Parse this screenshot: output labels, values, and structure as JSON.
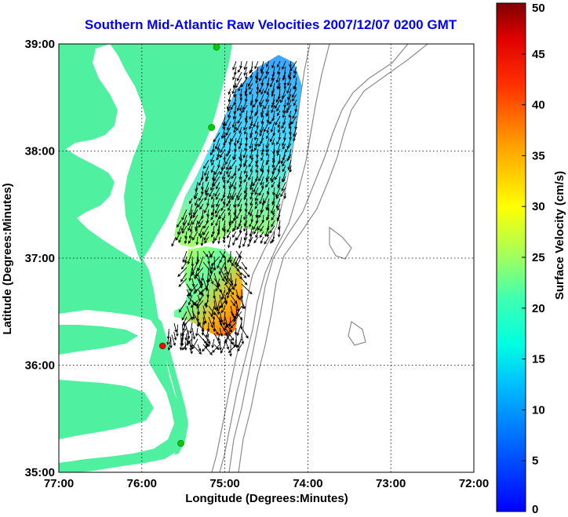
{
  "title": "Southern Mid-Atlantic Raw Velocities 2007/12/07 0200 GMT",
  "map": {
    "xlabel": "Longitude (Degrees:Minutes)",
    "ylabel": "Latitude (Degrees:Minutes)",
    "lon_range": [
      -77,
      -72
    ],
    "lat_range": [
      35,
      39
    ],
    "x_ticks": [
      {
        "value": -77,
        "label": "77:00"
      },
      {
        "value": -76,
        "label": "76:00"
      },
      {
        "value": -75,
        "label": "75:00"
      },
      {
        "value": -74,
        "label": "74:00"
      },
      {
        "value": -73,
        "label": "73:00"
      },
      {
        "value": -72,
        "label": "72:00"
      }
    ],
    "y_ticks": [
      {
        "value": 39,
        "label": "39:00"
      },
      {
        "value": 38,
        "label": "38:00"
      },
      {
        "value": 37,
        "label": "37:00"
      },
      {
        "value": 36,
        "label": "36:00"
      },
      {
        "value": 35,
        "label": "35:00"
      }
    ],
    "grid": "dotted",
    "land_color": "#4ff0a0",
    "water_color": "#ffffff",
    "bathymetry_color": "#8c8c8c"
  },
  "colorbar": {
    "label": "Surface Velocity (cm/s)",
    "min": 0,
    "max": 50,
    "ticks": [
      0,
      5,
      10,
      15,
      20,
      25,
      30,
      35,
      40,
      45,
      50
    ],
    "tick_labels": [
      "0",
      "5",
      "10",
      "15",
      "20",
      "25",
      "30",
      "35",
      "40",
      "45",
      "50"
    ],
    "placement": "right",
    "colormap": "jet"
  },
  "stations": [
    {
      "lon": -75.1,
      "lat": 38.97,
      "color": "#00cc00"
    },
    {
      "lon": -75.16,
      "lat": 38.22,
      "color": "#00cc00"
    },
    {
      "lon": -75.75,
      "lat": 36.18,
      "color": "#ff0000"
    },
    {
      "lon": -75.53,
      "lat": 35.27,
      "color": "#00cc00"
    }
  ]
}
